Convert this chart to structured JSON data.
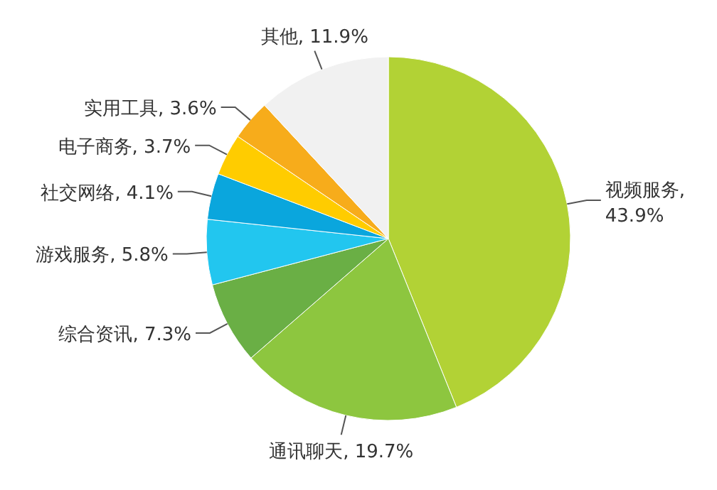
{
  "chart_data": {
    "type": "pie",
    "categories": [
      "视频服务",
      "通讯聊天",
      "综合资讯",
      "游戏服务",
      "社交网络",
      "电子商务",
      "实用工具",
      "其他"
    ],
    "values": [
      43.9,
      19.7,
      7.3,
      5.8,
      4.1,
      3.7,
      3.6,
      11.9
    ],
    "value_labels": [
      ", 43.9%",
      ", 19.7%",
      ", 7.3%",
      ", 5.8%",
      ", 4.1%",
      ", 3.7%",
      ", 3.6%",
      ", 11.9%"
    ],
    "colors": [
      "#b2d235",
      "#8dc63f",
      "#6aaf45",
      "#22c6ef",
      "#0aa6dd",
      "#ffcc00",
      "#f7ac1b",
      "#f1f1f1"
    ]
  }
}
